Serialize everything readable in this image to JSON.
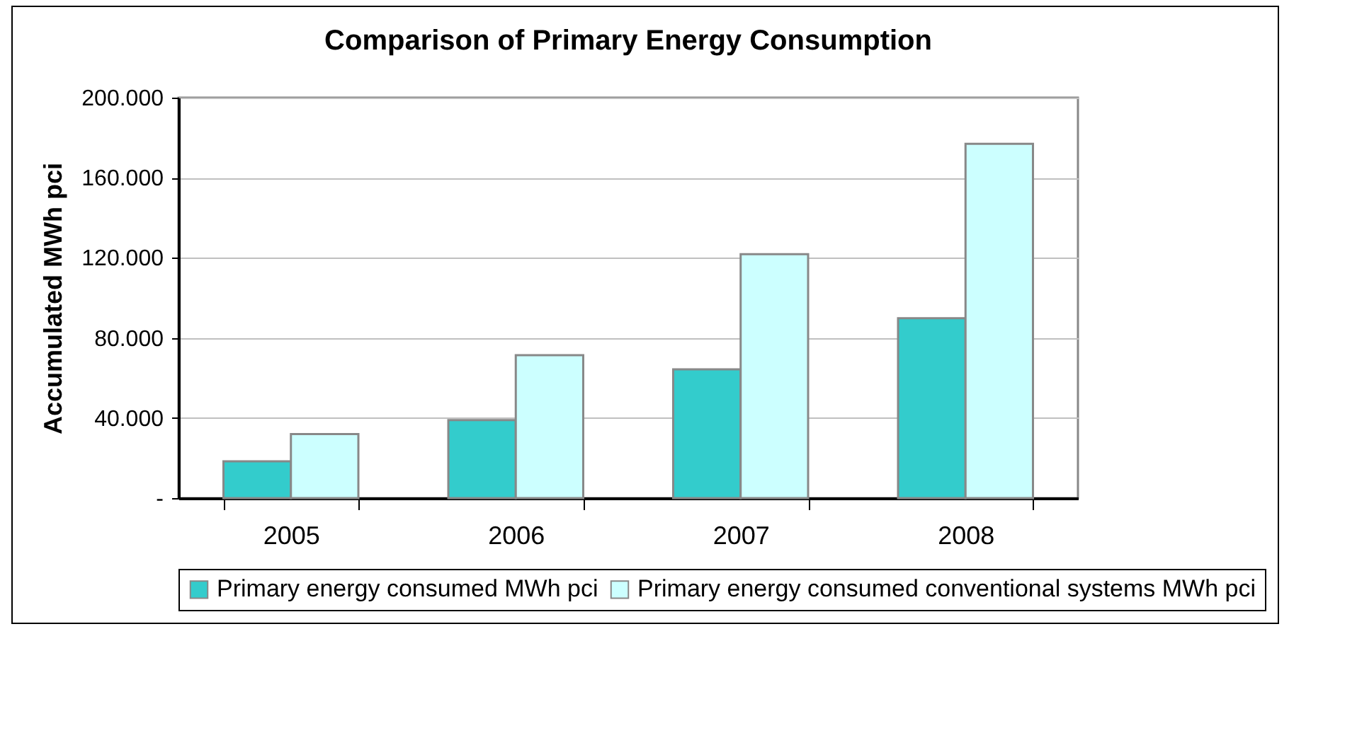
{
  "chart_data": {
    "type": "bar",
    "title": "Comparison of Primary Energy Consumption",
    "ylabel": "Accumulated MWh pci",
    "categories": [
      "2005",
      "2006",
      "2007",
      "2008"
    ],
    "series": [
      {
        "name": "Primary energy consumed MWh pci",
        "color": "#33cccc",
        "values": [
          18400,
          39000,
          64300,
          89800
        ]
      },
      {
        "name": "Primary energy consumed conventional systems MWh pci",
        "color": "#ccffff",
        "values": [
          32000,
          71400,
          121800,
          176900
        ]
      }
    ],
    "ylim": [
      0,
      200000
    ],
    "yticks": [
      {
        "value": 0,
        "label": "-"
      },
      {
        "value": 40000,
        "label": "40.000"
      },
      {
        "value": 80000,
        "label": "80.000"
      },
      {
        "value": 120000,
        "label": "120.000"
      },
      {
        "value": 160000,
        "label": "160.000"
      },
      {
        "value": 200000,
        "label": "200.000"
      }
    ],
    "grid": "y",
    "legend": "bottom"
  }
}
